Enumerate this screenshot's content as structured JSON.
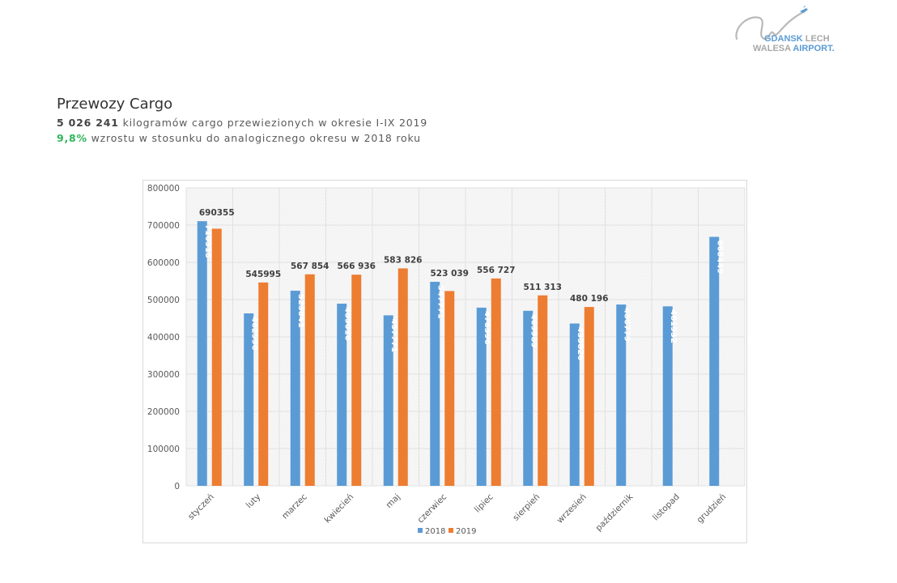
{
  "logo": {
    "line1_a": "GDANSK",
    "line1_b": "LECH",
    "line2_a": "WALESA",
    "line2_b": "AIRPORT."
  },
  "header": {
    "title": "Przewozy Cargo",
    "line1_value": "5 026 241",
    "line1_text": " kilogramów cargo przewiezionych w okresie I-IX 2019",
    "line2_value": "9,8%",
    "line2_text": " wzrostu w stosunku do analogicznego okresu w 2018 roku"
  },
  "colors": {
    "series_2018": "#5b9bd5",
    "series_2019": "#ed7d31",
    "growth_green": "#2fb457"
  },
  "chart_data": {
    "type": "bar",
    "title": "",
    "xlabel": "",
    "ylabel": "",
    "ylim": [
      0,
      800000
    ],
    "yticks": [
      0,
      100000,
      200000,
      300000,
      400000,
      500000,
      600000,
      700000,
      800000
    ],
    "ytick_labels": [
      "0",
      "100000",
      "200000",
      "300000",
      "400000",
      "500000",
      "600000",
      "700000",
      "800000"
    ],
    "grid": true,
    "legend": "bottom",
    "categories": [
      "styczeń",
      "luty",
      "marzec",
      "kwiecień",
      "maj",
      "czerwiec",
      "lipiec",
      "sierpień",
      "wrzesień",
      "październik",
      "listopad",
      "grudzień"
    ],
    "series": [
      {
        "name": "2018",
        "values": [
          710515,
          462996,
          523841,
          489016,
          457771,
          547771,
          478396,
          469989,
          435826,
          486779,
          481932,
          668449
        ],
        "labels": [
          "710515",
          "462996",
          "523841",
          "489016",
          "457771",
          "547771",
          "478396",
          "469989",
          "435826",
          "486779",
          "481932",
          "668449"
        ]
      },
      {
        "name": "2019",
        "values": [
          690355,
          545995,
          567854,
          566936,
          583826,
          523039,
          556727,
          511313,
          480196,
          null,
          null,
          null
        ],
        "labels": [
          "690355",
          "545995",
          "567 854",
          "566 936",
          "583 826",
          "523 039",
          "556 727",
          "511 313",
          "480 196",
          "",
          "",
          ""
        ]
      }
    ]
  }
}
